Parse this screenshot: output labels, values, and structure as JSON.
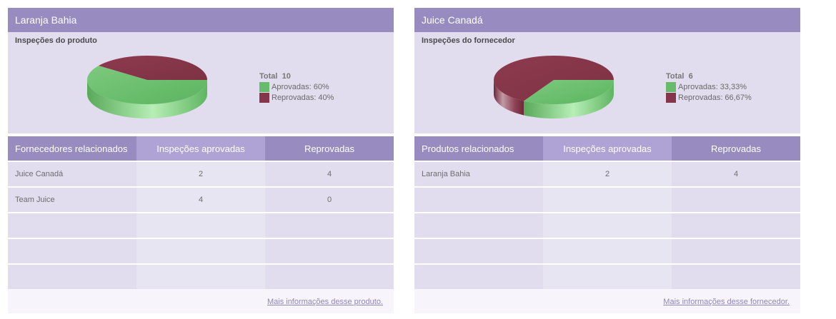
{
  "colors": {
    "header": "#978bc0",
    "header_light": "#afa2d4",
    "panel_bg": "#e1ddee",
    "approved": "#67bc6b",
    "rejected": "#86364a"
  },
  "panels": [
    {
      "title": "Laranja Bahia",
      "chart_title": "Inspeções do produto",
      "legend": {
        "total_label": "Total",
        "total_value": "10",
        "approved_label": "Aprovadas: 60%",
        "rejected_label": "Reprovadas: 40%"
      },
      "table": {
        "headers": [
          "Fornecedores relacionados",
          "Inspeções aprovadas",
          "Reprovadas"
        ],
        "rows": [
          [
            "Juice Canadá",
            "2",
            "4"
          ],
          [
            "Team Juice",
            "4",
            "0"
          ],
          [
            "",
            "",
            ""
          ],
          [
            "",
            "",
            ""
          ],
          [
            "",
            "",
            ""
          ]
        ]
      },
      "footer_link": "Mais informações desse produto."
    },
    {
      "title": "Juice Canadá",
      "chart_title": "Inspeções do fornecedor",
      "legend": {
        "total_label": "Total",
        "total_value": "6",
        "approved_label": "Aprovadas: 33,33%",
        "rejected_label": "Reprovadas: 66,67%"
      },
      "table": {
        "headers": [
          "Produtos relacionados",
          "Inspeções aprovadas",
          "Reprovadas"
        ],
        "rows": [
          [
            "Laranja Bahia",
            "2",
            "4"
          ],
          [
            "",
            "",
            ""
          ],
          [
            "",
            "",
            ""
          ],
          [
            "",
            "",
            ""
          ],
          [
            "",
            "",
            ""
          ]
        ]
      },
      "footer_link": "Mais informações desse fornecedor."
    }
  ],
  "chart_data": [
    {
      "type": "pie",
      "title": "Inspeções do produto",
      "categories": [
        "Aprovadas",
        "Reprovadas"
      ],
      "values": [
        60,
        40
      ],
      "total": 10,
      "legend_position": "right"
    },
    {
      "type": "pie",
      "title": "Inspeções do fornecedor",
      "categories": [
        "Aprovadas",
        "Reprovadas"
      ],
      "values": [
        33.33,
        66.67
      ],
      "total": 6,
      "legend_position": "right"
    }
  ]
}
